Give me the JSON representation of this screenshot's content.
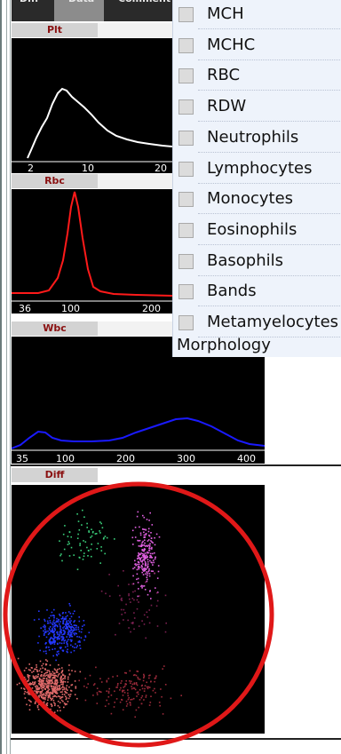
{
  "tabs": [
    {
      "label": "Diff"
    },
    {
      "label": "Data"
    },
    {
      "label": "Comment"
    }
  ],
  "plt": {
    "label": "Plt",
    "ticks": [
      "2",
      "10",
      "20"
    ]
  },
  "rbc": {
    "label": "Rbc",
    "ticks": [
      "36",
      "100",
      "200"
    ]
  },
  "wbc": {
    "label": "Wbc",
    "ticks": [
      "35",
      "100",
      "200",
      "300",
      "400"
    ]
  },
  "diff": {
    "label": "Diff"
  },
  "menu": {
    "items": [
      {
        "label": "MCH",
        "checked": false
      },
      {
        "label": "MCHC",
        "checked": false
      },
      {
        "label": "RBC",
        "checked": false
      },
      {
        "label": "RDW",
        "checked": false
      },
      {
        "label": "Neutrophils",
        "checked": false
      },
      {
        "label": "Lymphocytes",
        "checked": false
      },
      {
        "label": "Monocytes",
        "checked": false
      },
      {
        "label": "Eosinophils",
        "checked": false
      },
      {
        "label": "Basophils",
        "checked": false
      },
      {
        "label": "Bands",
        "checked": false
      },
      {
        "label": "Metamyelocytes",
        "checked": false
      }
    ],
    "footer": "Morphology"
  },
  "colors": {
    "plt_curve": "#ffffff",
    "rbc_curve": "#ff1a1a",
    "wbc_curve": "#1a1aff",
    "annotation_circle": "#e01818"
  }
}
